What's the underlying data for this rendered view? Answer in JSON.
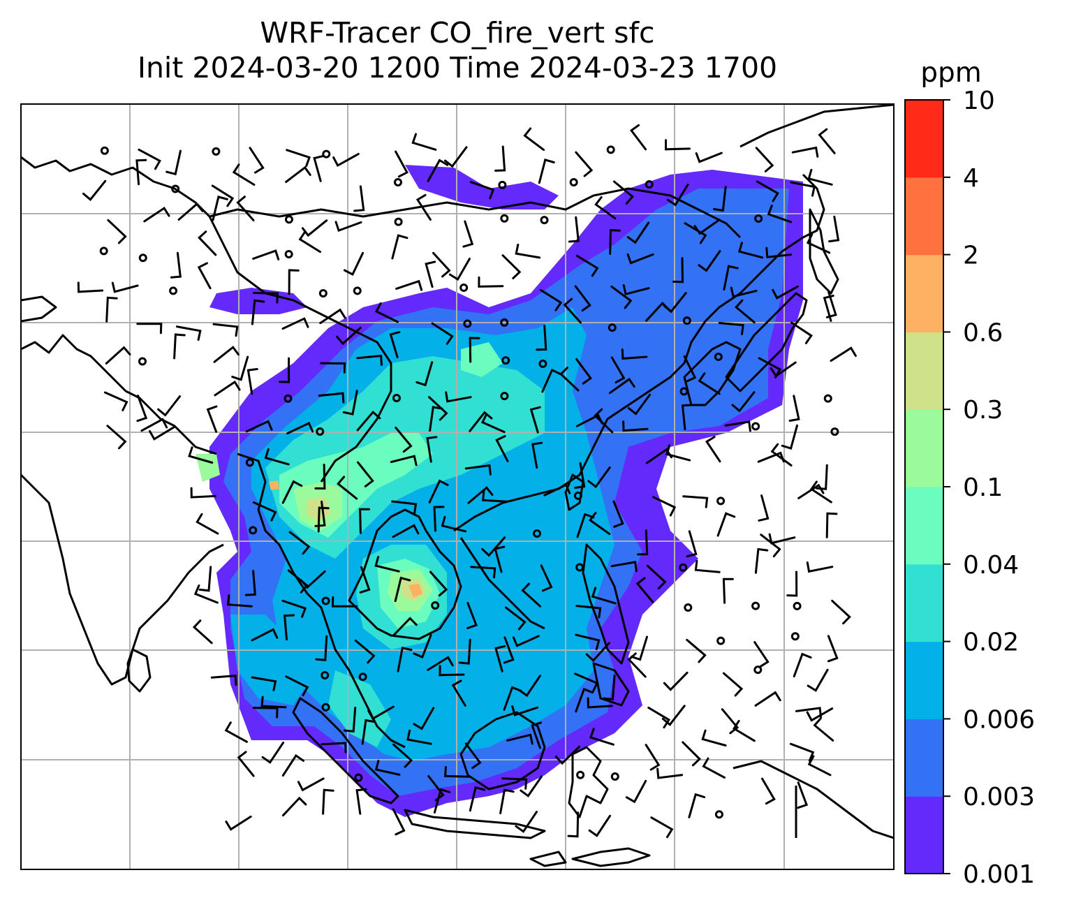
{
  "title": {
    "line1": "WRF-Tracer CO_fire_vert sfc",
    "line2": "Init 2024-03-20 1200 Time 2024-03-23 1700"
  },
  "colorbar": {
    "unit": "ppm",
    "levels": [
      "0.001",
      "0.003",
      "0.006",
      "0.02",
      "0.04",
      "0.1",
      "0.3",
      "0.6",
      "2",
      "4",
      "10"
    ],
    "colors": [
      "#6429fb",
      "#3372f4",
      "#04b0e8",
      "#31dfd3",
      "#6bfcbf",
      "#9bfa9c",
      "#cfe189",
      "#feb063",
      "#ff7240",
      "#ff2a18"
    ]
  },
  "map": {
    "background": "#ffffff",
    "gridline_color": "#b0b0b0",
    "coastline_color": "#000000",
    "gridlines": true
  }
}
